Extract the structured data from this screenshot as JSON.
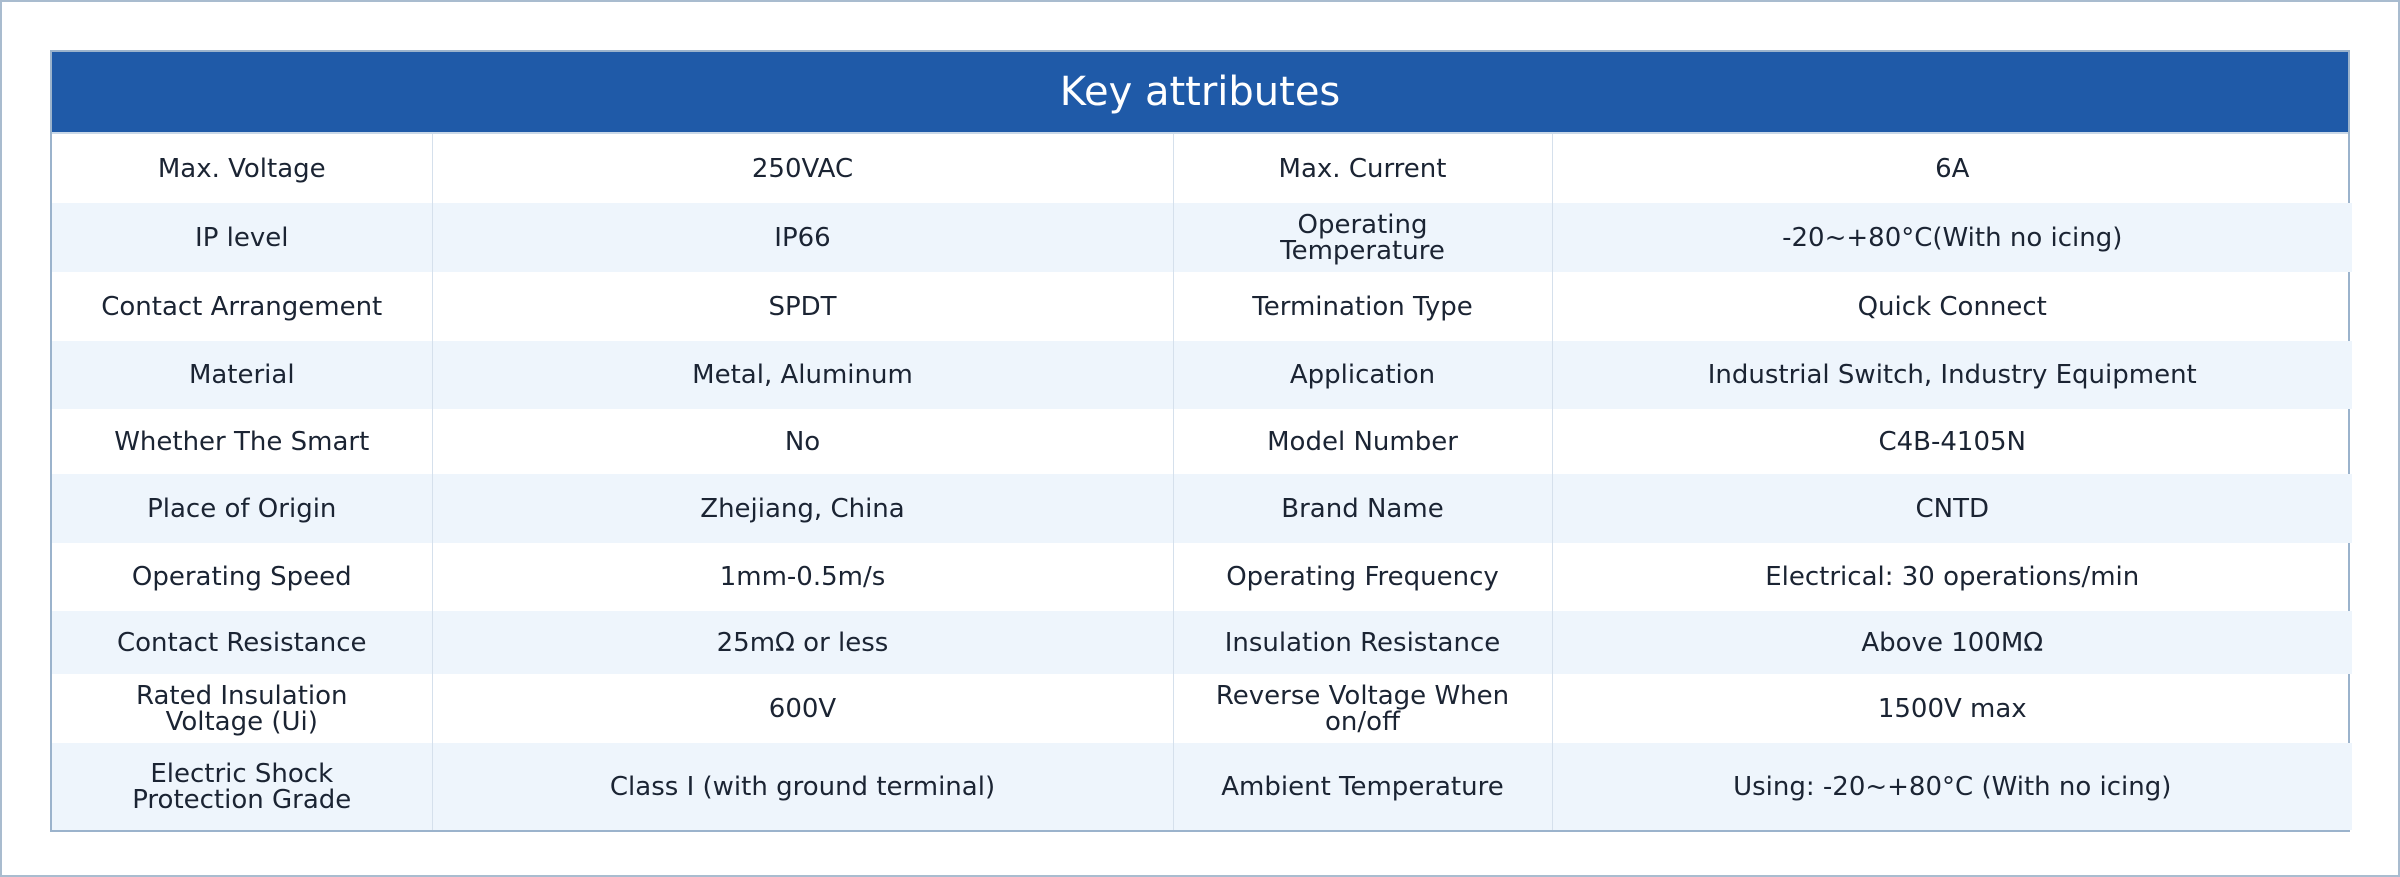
{
  "table": {
    "title": "Key attributes",
    "rows": [
      [
        "Max. Voltage",
        "250VAC",
        "Max. Current",
        "6A"
      ],
      [
        "IP level",
        "IP66",
        "Operating Temperature",
        "-20~+80°C(With no icing)"
      ],
      [
        "Contact Arrangement",
        "SPDT",
        "Termination Type",
        "Quick Connect"
      ],
      [
        "Material",
        "Metal, Aluminum",
        "Application",
        "Industrial Switch, Industry Equipment"
      ],
      [
        "Whether The Smart",
        "No",
        "Model Number",
        "C4B-4105N"
      ],
      [
        "Place of Origin",
        "Zhejiang, China",
        "Brand Name",
        "CNTD"
      ],
      [
        "Operating Speed",
        "1mm-0.5m/s",
        "Operating Frequency",
        "Electrical: 30 operations/min"
      ],
      [
        "Contact Resistance",
        "25mΩ or less",
        "Insulation Resistance",
        "Above 100MΩ"
      ],
      [
        "Rated Insulation Voltage (Ui)",
        "600V",
        "Reverse Voltage When on/off",
        "1500V max"
      ],
      [
        "Electric Shock Protection Grade",
        "Class I (with ground terminal)",
        "Ambient Temperature",
        "Using: -20~+80°C (With no icing)"
      ]
    ]
  }
}
